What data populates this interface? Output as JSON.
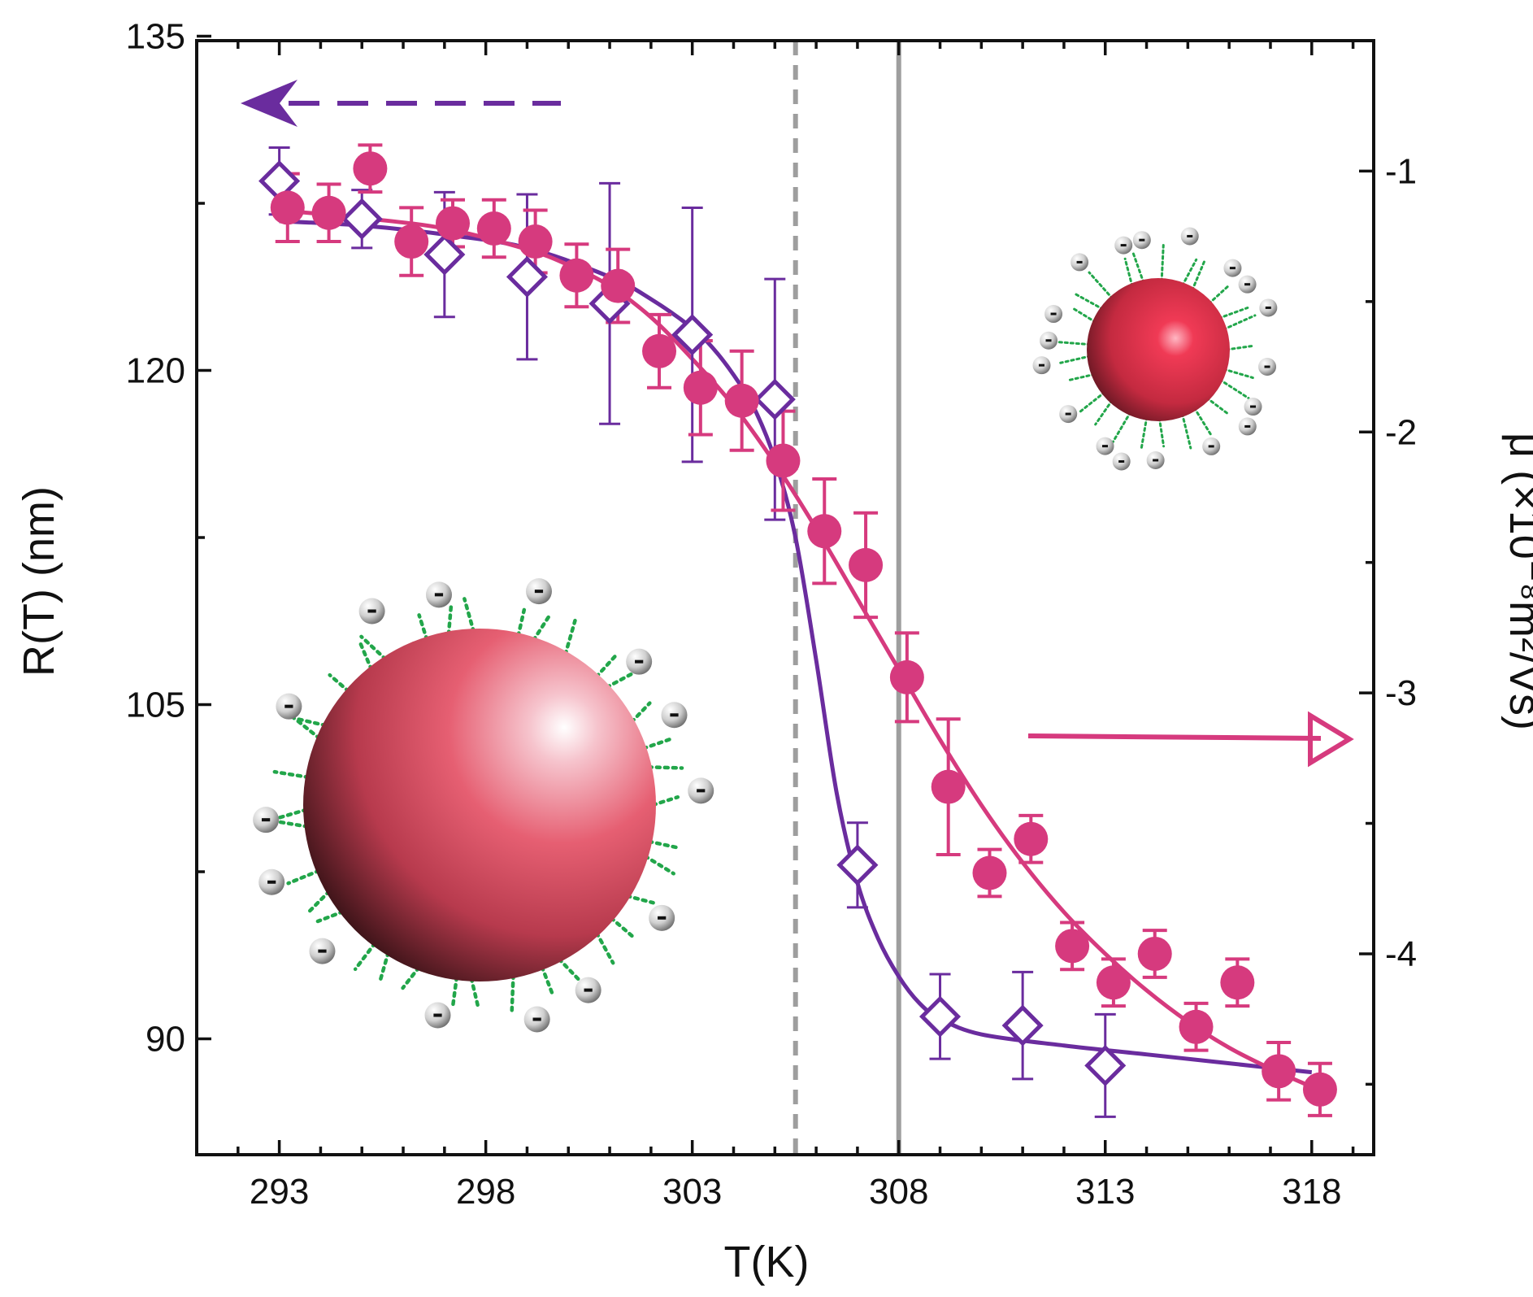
{
  "chart_data": {
    "type": "scatter",
    "title": "",
    "xlabel": "T(K)",
    "ylabel": "R(T) (nm)",
    "y2label": "μ (×10⁻⁸m²/Vs)",
    "xlim": [
      291,
      319.5
    ],
    "ylim": [
      84.8,
      134.8
    ],
    "y2lim": [
      -4.77,
      -0.5
    ],
    "xticks": [
      293,
      298,
      303,
      308,
      313,
      318
    ],
    "yticks": [
      90,
      105,
      120,
      135
    ],
    "y2ticks": [
      -1,
      -2,
      -3,
      -4
    ],
    "reference_lines": [
      {
        "x": 305.5,
        "style": "dashed",
        "color": "#9e9e9e"
      },
      {
        "x": 308,
        "style": "solid",
        "color": "#9e9e9e"
      }
    ],
    "series": [
      {
        "name": "R(T)",
        "axis": "left",
        "marker": "open-diamond",
        "color": "#6a2c9e",
        "x": [
          293,
          295,
          297,
          299,
          301,
          303,
          305,
          307,
          309,
          311,
          313
        ],
        "y": [
          128.5,
          126.8,
          125.2,
          124.2,
          123.0,
          121.6,
          118.7,
          97.8,
          91.0,
          90.6,
          88.8
        ],
        "yerr": [
          1.5,
          1.3,
          2.8,
          3.7,
          5.4,
          5.7,
          5.4,
          1.9,
          1.9,
          2.4,
          2.3
        ],
        "fit_x": [
          293,
          295,
          297,
          299,
          301,
          302,
          303,
          303.5,
          304,
          304.5,
          305,
          305.5,
          306,
          306.5,
          307,
          307.5,
          308,
          308.5,
          309,
          310,
          312,
          314,
          316,
          318
        ],
        "fit_y": [
          126.7,
          126.5,
          126.1,
          125.5,
          124.2,
          123.2,
          121.9,
          121.0,
          119.8,
          118.3,
          116.0,
          112.5,
          107.0,
          101.0,
          97.0,
          94.5,
          92.8,
          91.6,
          90.9,
          90.2,
          89.7,
          89.3,
          88.9,
          88.5
        ]
      },
      {
        "name": "μ",
        "axis": "right",
        "marker": "filled-circle",
        "color": "#d63a7e",
        "x": [
          293.2,
          294.2,
          295.2,
          296.2,
          297.2,
          298.2,
          299.2,
          300.2,
          301.2,
          302.2,
          303.2,
          304.2,
          305.2,
          306.2,
          307.2,
          308.2,
          309.2,
          310.2,
          311.2,
          312.2,
          313.2,
          314.2,
          315.2,
          316.2,
          317.2,
          318.2
        ],
        "y": [
          -1.14,
          -1.16,
          -0.99,
          -1.27,
          -1.2,
          -1.22,
          -1.27,
          -1.4,
          -1.44,
          -1.69,
          -1.83,
          -1.88,
          -2.11,
          -2.38,
          -2.51,
          -2.94,
          -3.36,
          -3.69,
          -3.56,
          -3.97,
          -4.11,
          -4.0,
          -4.28,
          -4.11,
          -4.45,
          -4.52
        ],
        "yerr": [
          0.13,
          0.11,
          0.09,
          0.13,
          0.09,
          0.11,
          0.12,
          0.12,
          0.14,
          0.14,
          0.18,
          0.19,
          0.19,
          0.2,
          0.2,
          0.17,
          0.26,
          0.09,
          0.09,
          0.09,
          0.09,
          0.09,
          0.09,
          0.09,
          0.11,
          0.1
        ],
        "fit_x": [
          293,
          295,
          297,
          299,
          300,
          301,
          302,
          303,
          304,
          305,
          306,
          307,
          308,
          309,
          310,
          311,
          312,
          313,
          314,
          315,
          316,
          317,
          318
        ],
        "fit_y": [
          -1.15,
          -1.18,
          -1.22,
          -1.3,
          -1.36,
          -1.44,
          -1.56,
          -1.72,
          -1.9,
          -2.12,
          -2.37,
          -2.64,
          -2.91,
          -3.18,
          -3.43,
          -3.65,
          -3.84,
          -4.0,
          -4.14,
          -4.26,
          -4.36,
          -4.44,
          -4.51
        ]
      }
    ],
    "annotations": [
      {
        "type": "arrow",
        "direction": "left",
        "style": "dashed",
        "color": "#6a2c9e",
        "meaning": "left-axis series"
      },
      {
        "type": "arrow",
        "direction": "right",
        "style": "solid",
        "color": "#d63a7e",
        "meaning": "right-axis series"
      },
      {
        "type": "illustration",
        "name": "large-particle",
        "charge_label": "-"
      },
      {
        "type": "illustration",
        "name": "small-particle",
        "charge_label": "-"
      }
    ]
  }
}
